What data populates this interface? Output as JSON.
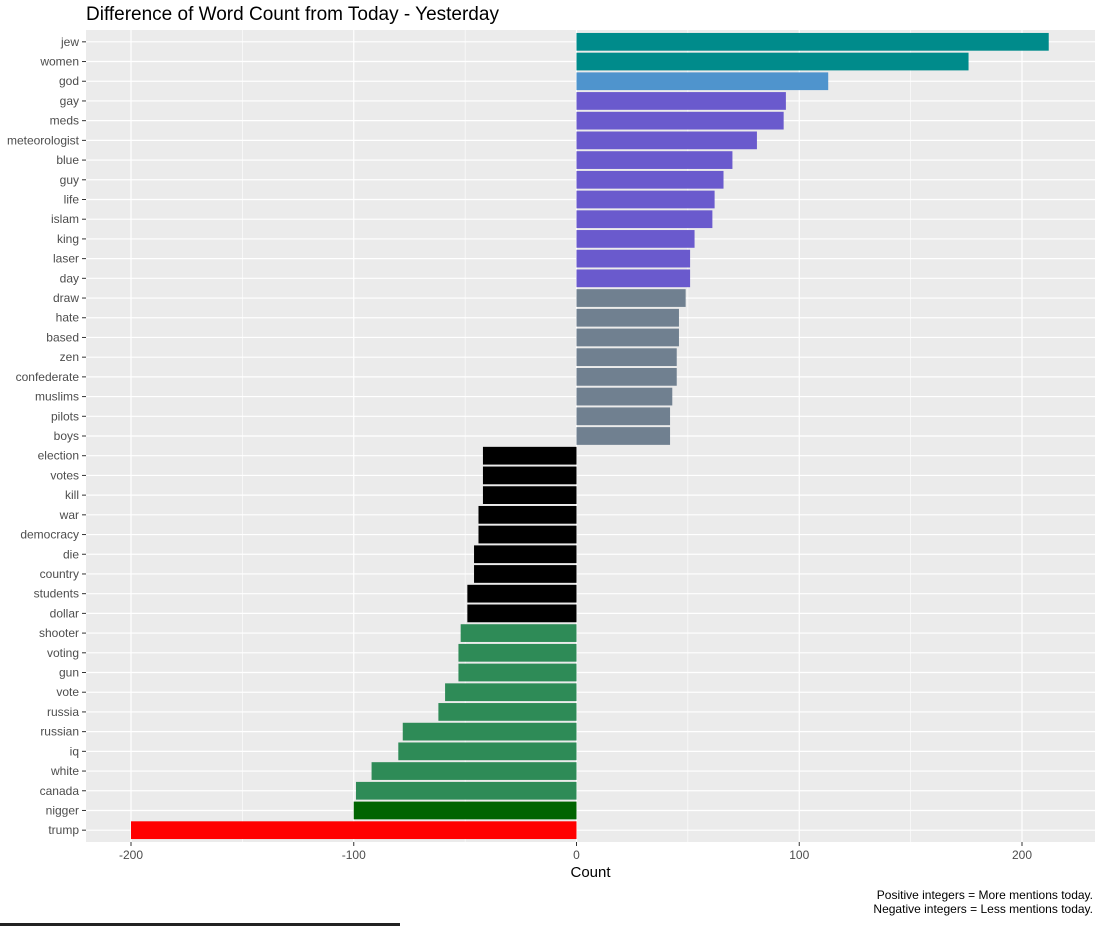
{
  "chart_data": {
    "type": "bar",
    "orientation": "horizontal",
    "title": "Difference of Word Count from Today - Yesterday",
    "xlabel": "Count",
    "ylabel": "",
    "xlim": [
      -225,
      233
    ],
    "x_ticks": [
      -200,
      -100,
      0,
      100,
      200
    ],
    "x_tick_labels": [
      "-200",
      "-100",
      "0",
      "100",
      "200"
    ],
    "grid": true,
    "legend": "none",
    "categories": [
      "jew",
      "women",
      "god",
      "gay",
      "meds",
      "meteorologist",
      "blue",
      "guy",
      "life",
      "islam",
      "king",
      "laser",
      "day",
      "draw",
      "hate",
      "based",
      "zen",
      "confederate",
      "muslims",
      "pilots",
      "boys",
      "election",
      "votes",
      "kill",
      "war",
      "democracy",
      "die",
      "country",
      "students",
      "dollar",
      "shooter",
      "voting",
      "gun",
      "vote",
      "russia",
      "russian",
      "iq",
      "white",
      "canada",
      "nigger",
      "trump"
    ],
    "values": [
      212,
      176,
      113,
      94,
      93,
      81,
      70,
      66,
      62,
      61,
      53,
      51,
      51,
      49,
      46,
      46,
      45,
      45,
      43,
      42,
      42,
      -42,
      -42,
      -42,
      -44,
      -44,
      -46,
      -46,
      -49,
      -49,
      -52,
      -53,
      -53,
      -59,
      -62,
      -78,
      -80,
      -92,
      -99,
      -100,
      -200
    ],
    "colors": [
      "#008b8b",
      "#008b8b",
      "#4f94cd",
      "#6a5acd",
      "#6a5acd",
      "#6a5acd",
      "#6a5acd",
      "#6a5acd",
      "#6a5acd",
      "#6a5acd",
      "#6a5acd",
      "#6a5acd",
      "#6a5acd",
      "#708090",
      "#708090",
      "#708090",
      "#708090",
      "#708090",
      "#708090",
      "#708090",
      "#708090",
      "#000000",
      "#000000",
      "#000000",
      "#000000",
      "#000000",
      "#000000",
      "#000000",
      "#000000",
      "#000000",
      "#2e8b57",
      "#2e8b57",
      "#2e8b57",
      "#2e8b57",
      "#2e8b57",
      "#2e8b57",
      "#2e8b57",
      "#2e8b57",
      "#2e8b57",
      "#006400",
      "#ff0000"
    ],
    "caption": [
      "Positive integers = More mentions today.",
      "Negative integers = Less mentions today."
    ]
  },
  "theme": {
    "panel_background": "#ebebeb",
    "grid_color": "#ffffff",
    "text_color": "#4d4d4d"
  }
}
